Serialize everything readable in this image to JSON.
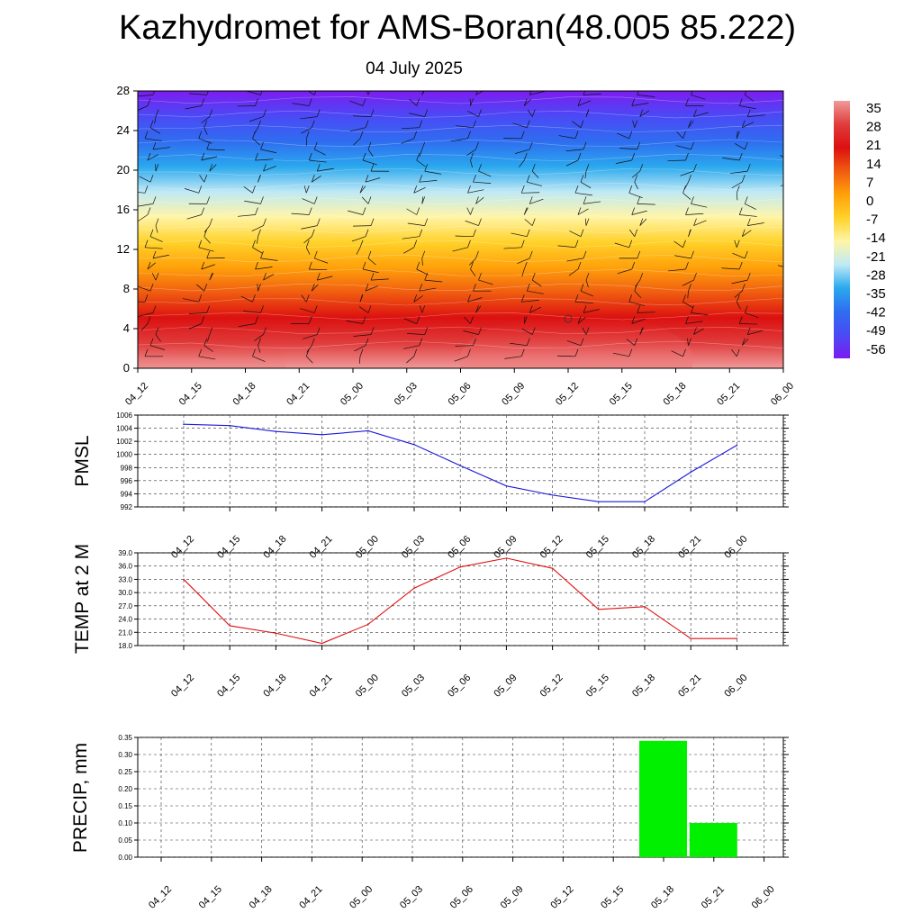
{
  "title": "Kazhydromet for AMS-Boran(48.005 85.222)",
  "subtitle": "04 July 2025",
  "colorbar": {
    "labels": [
      "35",
      "28",
      "21",
      "14",
      "7",
      "0",
      "-7",
      "-14",
      "-21",
      "-28",
      "-35",
      "-42",
      "-49",
      "-56"
    ]
  },
  "chart_data": [
    {
      "type": "heatmap",
      "name": "temperature-cross-section",
      "x": [
        "04_12",
        "04_15",
        "04_18",
        "04_21",
        "05_00",
        "05_03",
        "05_06",
        "05_09",
        "05_12",
        "05_15",
        "05_18",
        "05_21",
        "06_00"
      ],
      "yticks": [
        0,
        4,
        8,
        12,
        16,
        20,
        24,
        28
      ],
      "ylim": [
        0,
        28
      ],
      "zlim": [
        -60,
        38
      ],
      "colors": [
        "#7d1cf0",
        "#4a4af5",
        "#2f6df0",
        "#2aa8ee",
        "#bfe9f5",
        "#fff5a8",
        "#ffd22a",
        "#ffa10a",
        "#f05c10",
        "#dc1010",
        "#e03c3c",
        "#f09a9a"
      ]
    },
    {
      "type": "line",
      "name": "pmsl",
      "ylabel": "PMSL",
      "x": [
        "04_12",
        "04_15",
        "04_18",
        "04_21",
        "05_00",
        "05_03",
        "05_06",
        "05_09",
        "05_12",
        "05_15",
        "05_18",
        "05_21",
        "06_00"
      ],
      "values": [
        1004.6,
        1004.4,
        1003.5,
        1003.0,
        1003.6,
        1001.5,
        998.3,
        995.2,
        993.8,
        992.8,
        992.8,
        997.3,
        1001.4
      ],
      "ylim": [
        992,
        1006
      ],
      "yticks": [
        992,
        994,
        996,
        998,
        1000,
        1002,
        1004,
        1006
      ],
      "color": "#1a1adb"
    },
    {
      "type": "line",
      "name": "temp2m",
      "ylabel": "TEMP at 2 M",
      "x": [
        "04_12",
        "04_15",
        "04_18",
        "04_21",
        "05_00",
        "05_03",
        "05_06",
        "05_09",
        "05_12",
        "05_15",
        "05_18",
        "05_21",
        "06_00"
      ],
      "values": [
        33.0,
        22.5,
        20.8,
        18.5,
        22.8,
        31.0,
        35.8,
        37.8,
        35.5,
        26.2,
        26.8,
        19.6,
        19.6
      ],
      "ylim": [
        18,
        39
      ],
      "yticks": [
        "18.0",
        "21.0",
        "24.0",
        "27.0",
        "30.0",
        "33.0",
        "36.0",
        "39.0"
      ],
      "color": "#e01010"
    },
    {
      "type": "bar",
      "name": "precip",
      "ylabel": "PRECIP, mm",
      "categories": [
        "04_12",
        "04_15",
        "04_18",
        "04_21",
        "05_00",
        "05_03",
        "05_06",
        "05_09",
        "05_12",
        "05_15",
        "05_18",
        "05_21",
        "06_00"
      ],
      "values": [
        0,
        0,
        0,
        0,
        0,
        0,
        0,
        0,
        0,
        0,
        0.34,
        0.1,
        0
      ],
      "ylim": [
        0,
        0.35
      ],
      "yticks": [
        "0.00",
        "0.05",
        "0.10",
        "0.15",
        "0.20",
        "0.25",
        "0.30",
        "0.35"
      ],
      "color": "#00f000"
    }
  ]
}
